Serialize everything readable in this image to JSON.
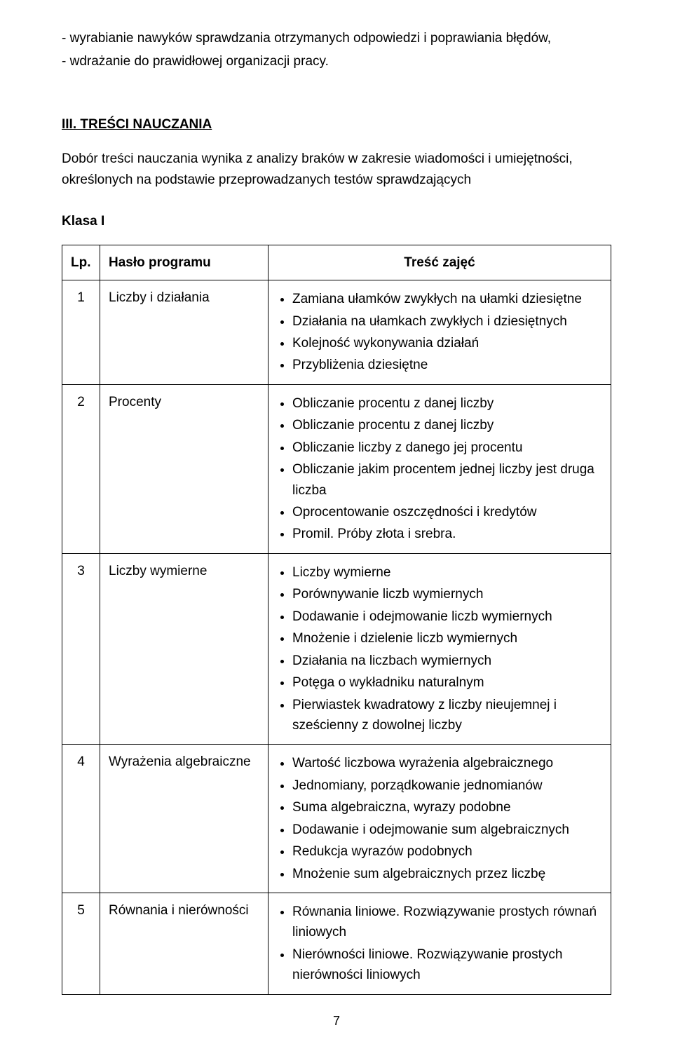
{
  "intro_lines": [
    "- wyrabianie nawyków sprawdzania otrzymanych odpowiedzi i poprawiania błędów,",
    "- wdrażanie do prawidłowej organizacji pracy."
  ],
  "section_title": "III. TREŚCI NAUCZANIA",
  "section_body": "Dobór treści nauczania wynika z analizy braków w zakresie wiadomości  i umiejętności, określonych na podstawie przeprowadzanych testów sprawdzających",
  "klass_label": "Klasa I",
  "table": {
    "headers": {
      "lp": "Lp.",
      "haslo": "Hasło programu",
      "tresc": "Treść zajęć"
    },
    "rows": [
      {
        "lp": "1",
        "haslo": "Liczby i działania",
        "bullets": [
          "Zamiana ułamków zwykłych na ułamki dziesiętne",
          "Działania na ułamkach zwykłych i dziesiętnych",
          "Kolejność wykonywania działań",
          "Przybliżenia dziesiętne"
        ]
      },
      {
        "lp": "2",
        "haslo": "Procenty",
        "bullets": [
          "Obliczanie procentu z danej liczby",
          "Obliczanie procentu  z danej liczby",
          "Obliczanie liczby z danego jej procentu",
          "Obliczanie jakim procentem jednej liczby jest druga liczba",
          "Oprocentowanie oszczędności i kredytów",
          "Promil. Próby złota i srebra."
        ]
      },
      {
        "lp": "3",
        "haslo": "Liczby wymierne",
        "bullets": [
          "Liczby wymierne",
          "Porównywanie liczb wymiernych",
          "Dodawanie i odejmowanie liczb wymiernych",
          "Mnożenie i dzielenie liczb wymiernych",
          "Działania na liczbach wymiernych",
          "Potęga  o wykładniku naturalnym",
          "Pierwiastek kwadratowy z liczby nieujemnej i sześcienny z dowolnej liczby"
        ]
      },
      {
        "lp": "4",
        "haslo": "Wyrażenia algebraiczne",
        "bullets": [
          "Wartość liczbowa wyrażenia algebraicznego",
          "Jednomiany, porządkowanie jednomianów",
          "Suma algebraiczna, wyrazy podobne",
          "Dodawanie i odejmowanie sum algebraicznych",
          "Redukcja wyrazów podobnych",
          "Mnożenie sum algebraicznych przez liczbę"
        ]
      },
      {
        "lp": "5",
        "haslo": "Równania  i nierówności",
        "bullets": [
          "Równania liniowe. Rozwiązywanie prostych równań liniowych",
          "Nierówności liniowe. Rozwiązywanie prostych nierówności liniowych"
        ]
      }
    ]
  },
  "page_number": "7"
}
